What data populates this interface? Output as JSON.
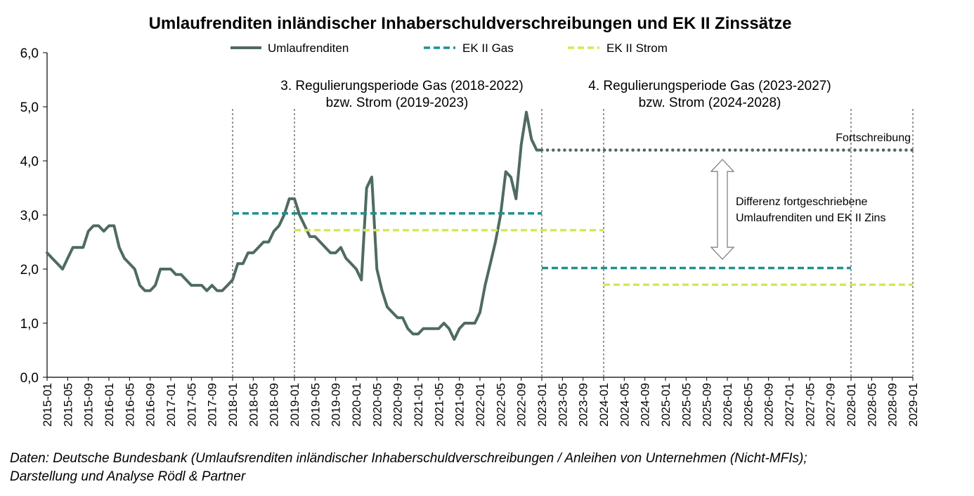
{
  "chart_data": {
    "type": "line",
    "title": "Umlaufrenditen inländischer Inhaberschuldverschreibungen und EK II Zinssätze",
    "xlabel": "",
    "ylabel": "",
    "ylim": [
      0,
      6
    ],
    "y_ticks": [
      "0,0",
      "1,0",
      "2,0",
      "3,0",
      "4,0",
      "5,0",
      "6,0"
    ],
    "x_ticks": [
      "2015-01",
      "2015-05",
      "2015-09",
      "2016-01",
      "2016-05",
      "2016-09",
      "2017-01",
      "2017-05",
      "2017-09",
      "2018-01",
      "2018-05",
      "2018-09",
      "2019-01",
      "2019-05",
      "2019-09",
      "2020-01",
      "2020-05",
      "2020-09",
      "2021-01",
      "2021-05",
      "2021-09",
      "2022-01",
      "2022-05",
      "2022-09",
      "2023-01",
      "2023-05",
      "2023-09",
      "2024-01",
      "2024-05",
      "2024-09",
      "2025-01",
      "2025-05",
      "2025-09",
      "2026-01",
      "2026-05",
      "2026-09",
      "2027-01",
      "2027-05",
      "2027-09",
      "2028-01",
      "2028-05",
      "2028-09",
      "2029-01"
    ],
    "x_start": "2015-01",
    "grid": false,
    "legend_placement": "top",
    "series": [
      {
        "name": "Umlaufrenditen",
        "style": "solid",
        "color": "#4f6b5f",
        "x": [
          "2015-01",
          "2015-02",
          "2015-03",
          "2015-04",
          "2015-05",
          "2015-06",
          "2015-07",
          "2015-08",
          "2015-09",
          "2015-10",
          "2015-11",
          "2015-12",
          "2016-01",
          "2016-02",
          "2016-03",
          "2016-04",
          "2016-05",
          "2016-06",
          "2016-07",
          "2016-08",
          "2016-09",
          "2016-10",
          "2016-11",
          "2016-12",
          "2017-01",
          "2017-02",
          "2017-03",
          "2017-04",
          "2017-05",
          "2017-06",
          "2017-07",
          "2017-08",
          "2017-09",
          "2017-10",
          "2017-11",
          "2017-12",
          "2018-01",
          "2018-02",
          "2018-03",
          "2018-04",
          "2018-05",
          "2018-06",
          "2018-07",
          "2018-08",
          "2018-09",
          "2018-10",
          "2018-11",
          "2018-12",
          "2019-01",
          "2019-02",
          "2019-03",
          "2019-04",
          "2019-05",
          "2019-06",
          "2019-07",
          "2019-08",
          "2019-09",
          "2019-10",
          "2019-11",
          "2019-12",
          "2020-01",
          "2020-02",
          "2020-03",
          "2020-04",
          "2020-05",
          "2020-06",
          "2020-07",
          "2020-08",
          "2020-09",
          "2020-10",
          "2020-11",
          "2020-12",
          "2021-01",
          "2021-02",
          "2021-03",
          "2021-04",
          "2021-05",
          "2021-06",
          "2021-07",
          "2021-08",
          "2021-09",
          "2021-10",
          "2021-11",
          "2021-12",
          "2022-01",
          "2022-02",
          "2022-03",
          "2022-04",
          "2022-05",
          "2022-06",
          "2022-07",
          "2022-08",
          "2022-09",
          "2022-10",
          "2022-11",
          "2022-12",
          "2023-01"
        ],
        "values": [
          2.3,
          2.2,
          2.1,
          2.0,
          2.2,
          2.4,
          2.4,
          2.4,
          2.7,
          2.8,
          2.8,
          2.7,
          2.8,
          2.8,
          2.4,
          2.2,
          2.1,
          2.0,
          1.7,
          1.6,
          1.6,
          1.7,
          2.0,
          2.0,
          2.0,
          1.9,
          1.9,
          1.8,
          1.7,
          1.7,
          1.7,
          1.6,
          1.7,
          1.6,
          1.6,
          1.7,
          1.8,
          2.1,
          2.1,
          2.3,
          2.3,
          2.4,
          2.5,
          2.5,
          2.7,
          2.8,
          3.0,
          3.3,
          3.3,
          3.0,
          2.8,
          2.6,
          2.6,
          2.5,
          2.4,
          2.3,
          2.3,
          2.4,
          2.2,
          2.1,
          2.0,
          1.8,
          3.5,
          3.7,
          2.0,
          1.6,
          1.3,
          1.2,
          1.1,
          1.1,
          0.9,
          0.8,
          0.8,
          0.9,
          0.9,
          0.9,
          0.9,
          1.0,
          0.9,
          0.7,
          0.9,
          1.0,
          1.0,
          1.0,
          1.2,
          1.7,
          2.1,
          2.5,
          3.0,
          3.8,
          3.7,
          3.3,
          4.3,
          4.9,
          4.4,
          4.2,
          4.2
        ]
      },
      {
        "name": "Fortschreibung",
        "style": "dotted",
        "color": "#4f6b5f",
        "x": [
          "2023-01",
          "2029-01"
        ],
        "values": [
          4.2,
          4.2
        ]
      },
      {
        "name": "EK II Gas",
        "style": "dashed",
        "color": "#1f9090",
        "segments": [
          {
            "x": [
              "2018-01",
              "2023-01"
            ],
            "values": [
              3.03,
              3.03
            ]
          },
          {
            "x": [
              "2023-01",
              "2028-01"
            ],
            "values": [
              2.02,
              2.02
            ]
          }
        ]
      },
      {
        "name": "EK II Strom",
        "style": "dashed",
        "color": "#d7e852",
        "segments": [
          {
            "x": [
              "2019-01",
              "2024-01"
            ],
            "values": [
              2.72,
              2.72
            ]
          },
          {
            "x": [
              "2024-01",
              "2029-01"
            ],
            "values": [
              1.71,
              1.71
            ]
          }
        ]
      }
    ],
    "vertical_markers": [
      "2018-01",
      "2019-01",
      "2023-01",
      "2024-01",
      "2028-01",
      "2029-01"
    ],
    "annotations": {
      "period3_line1": "3. Regulierungsperiode Gas (2018-2022)",
      "period3_line2": "bzw. Strom (2019-2023)",
      "period4_line1": "4. Regulierungsperiode Gas (2023-2027)",
      "period4_line2": "bzw. Strom (2024-2028)",
      "fortschreibung": "Fortschreibung",
      "differenz_line1": "Differenz fortgeschriebene",
      "differenz_line2": "Umlaufrenditen und EK II Zins"
    }
  },
  "source": {
    "line1": "Daten: Deutsche Bundesbank (Umlaufsrenditen inländischer Inhaberschuldverschreibungen / Anleihen von Unternehmen (Nicht-MFIs);",
    "line2": "Darstellung und Analyse Rödl & Partner"
  }
}
